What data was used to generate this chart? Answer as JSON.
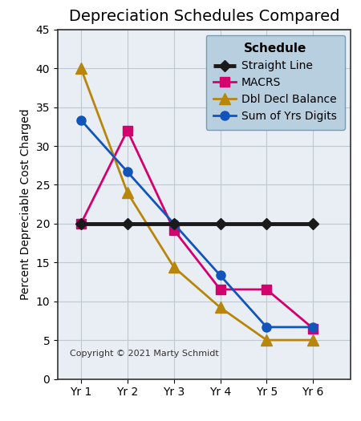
{
  "title": "Depreciation Schedules Compared",
  "ylabel": "Percent Depreciable Cost Charged",
  "x_labels": [
    "Yr 1",
    "Yr 2",
    "Yr 3",
    "Yr 4",
    "Yr 5",
    "Yr 6"
  ],
  "x_values": [
    1,
    2,
    3,
    4,
    5,
    6
  ],
  "ylim": [
    0,
    45
  ],
  "xlim": [
    0.5,
    6.8
  ],
  "yticks": [
    0,
    5,
    10,
    15,
    20,
    25,
    30,
    35,
    40,
    45
  ],
  "straight_line": {
    "values": [
      20,
      20,
      20,
      20,
      20,
      20
    ],
    "color": "#1a1a1a",
    "label": "Straight Line",
    "marker": "D",
    "markersize": 7,
    "linewidth": 3.5
  },
  "macrs": {
    "values": [
      20,
      32,
      19.2,
      11.52,
      11.52,
      6.5
    ],
    "color": "#d4006e",
    "label": "MACRS",
    "marker": "s",
    "markersize": 8,
    "linewidth": 2.0
  },
  "dbl_decl": {
    "values": [
      40,
      24,
      14.4,
      9.2,
      5.0,
      5.0
    ],
    "color": "#b8860b",
    "label": "Dbl Decl Balance",
    "marker": "^",
    "markersize": 10,
    "linewidth": 2.0
  },
  "sum_yrs": {
    "values": [
      33.33,
      26.67,
      20.0,
      13.33,
      6.67,
      6.67
    ],
    "color": "#1155bb",
    "label": "Sum of Yrs Digits",
    "marker": "o",
    "markersize": 8,
    "linewidth": 2.0
  },
  "legend_title": "Schedule",
  "legend_bg": "#b8cfe0",
  "legend_edge": "#7a9ab0",
  "copyright": "Copyright © 2021 Marty Schmidt",
  "bg_color": "#ffffff",
  "plot_bg": "#e8eef4",
  "grid_color": "#c0c8d0",
  "title_fontsize": 14,
  "label_fontsize": 10,
  "tick_fontsize": 10,
  "legend_fontsize": 10
}
